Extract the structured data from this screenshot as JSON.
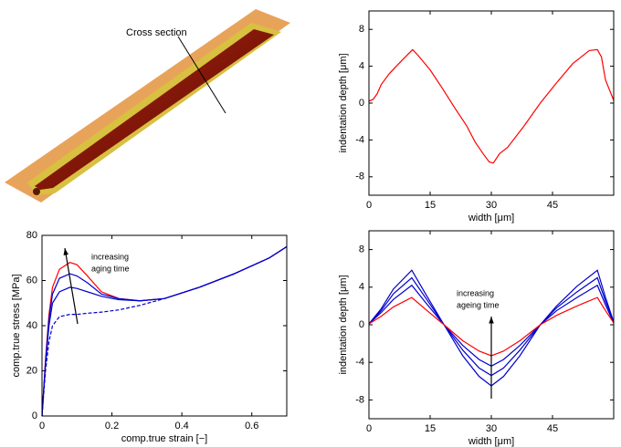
{
  "image": {
    "annotation": "Cross section"
  },
  "chart_data": [
    {
      "type": "line",
      "xlabel": "width [μm]",
      "ylabel": "indentation depth [μm]",
      "x": [
        0,
        1,
        2,
        3,
        5,
        8,
        10.7,
        12,
        15,
        18,
        21,
        24,
        26,
        28,
        29.5,
        30.5,
        32,
        34,
        38,
        42,
        46,
        50,
        54,
        56,
        57,
        58,
        60
      ],
      "series": [
        {
          "color": "#ff0000",
          "style": "solid",
          "values": [
            0.2,
            0.4,
            1,
            2,
            3.2,
            4.6,
            5.8,
            5.2,
            3.6,
            1.6,
            -0.5,
            -2.5,
            -4.2,
            -5.5,
            -6.4,
            -6.5,
            -5.5,
            -4.8,
            -2.5,
            0,
            2.2,
            4.3,
            5.7,
            5.8,
            5,
            2.5,
            0.3
          ]
        }
      ],
      "xlim": [
        0,
        60
      ],
      "xticks": [
        0,
        15,
        30,
        45
      ],
      "ylim": [
        -10,
        10
      ],
      "yticks": [
        -8,
        -4,
        0,
        4,
        8
      ]
    },
    {
      "type": "line",
      "xlabel": "comp.true strain [−]",
      "ylabel": "comp.true stress [MPa]",
      "annotation": [
        "increasing",
        "aging time"
      ],
      "x": [
        0,
        0.01,
        0.02,
        0.03,
        0.05,
        0.08,
        0.1,
        0.13,
        0.17,
        0.22,
        0.28,
        0.35,
        0.45,
        0.55,
        0.65,
        0.7
      ],
      "series": [
        {
          "color": "#ff0000",
          "style": "solid",
          "values": [
            0,
            25,
            45,
            57,
            65,
            68,
            67,
            62,
            55,
            52,
            51,
            52,
            57,
            63,
            70,
            75
          ]
        },
        {
          "color": "#0000cc",
          "style": "solid",
          "values": [
            0,
            24,
            43,
            54,
            61,
            63,
            62,
            59,
            54,
            52,
            51,
            52,
            57,
            63,
            70,
            75
          ]
        },
        {
          "color": "#0000cc",
          "style": "solid",
          "values": [
            0,
            23,
            40,
            50,
            55,
            57,
            56.5,
            55,
            53,
            51.5,
            51,
            52,
            57,
            63,
            70,
            75
          ]
        },
        {
          "color": "#0000cc",
          "style": "dashed",
          "values": [
            0,
            20,
            33,
            40,
            44,
            45,
            45,
            45.5,
            46,
            47,
            49,
            52,
            57,
            63,
            70,
            75
          ]
        }
      ],
      "xlim": [
        0,
        0.7
      ],
      "xticks": [
        0,
        0.2,
        0.4,
        0.6
      ],
      "ylim": [
        0,
        80
      ],
      "yticks": [
        0,
        20,
        40,
        60,
        80
      ]
    },
    {
      "type": "line",
      "xlabel": "width [μm]",
      "ylabel": "indentation depth [μm]",
      "annotation": [
        "increasing",
        "ageing time"
      ],
      "x": [
        0,
        3,
        6,
        10.5,
        14,
        18.4,
        23,
        27,
        30,
        33,
        37,
        42,
        46,
        51,
        56,
        58,
        60
      ],
      "series": [
        {
          "color": "#0000cc",
          "style": "solid",
          "values": [
            0.1,
            1.7,
            3.8,
            5.8,
            3.2,
            0,
            -3.3,
            -5.5,
            -6.5,
            -5.5,
            -3.3,
            0,
            2.0,
            4.1,
            5.8,
            2.9,
            0.3
          ]
        },
        {
          "color": "#0000cc",
          "style": "solid",
          "values": [
            0.1,
            1.5,
            3.3,
            5.0,
            2.8,
            0,
            -2.7,
            -4.6,
            -5.4,
            -4.6,
            -2.7,
            0,
            1.8,
            3.5,
            5.0,
            2.5,
            0.3
          ]
        },
        {
          "color": "#0000cc",
          "style": "solid",
          "values": [
            0.1,
            1.3,
            2.7,
            4.2,
            2.3,
            0,
            -2.2,
            -3.7,
            -4.4,
            -3.7,
            -2.2,
            0,
            1.5,
            2.9,
            4.2,
            2.1,
            0.2
          ]
        },
        {
          "color": "#ff0000",
          "style": "solid",
          "values": [
            0.1,
            0.9,
            1.9,
            2.9,
            1.6,
            0,
            -1.7,
            -2.8,
            -3.3,
            -2.8,
            -1.7,
            0,
            1.0,
            2.0,
            2.9,
            1.5,
            0.2
          ]
        }
      ],
      "xlim": [
        0,
        60
      ],
      "xticks": [
        0,
        15,
        30,
        45
      ],
      "ylim": [
        -10,
        10
      ],
      "yticks": [
        -8,
        -4,
        0,
        4,
        8
      ]
    }
  ]
}
